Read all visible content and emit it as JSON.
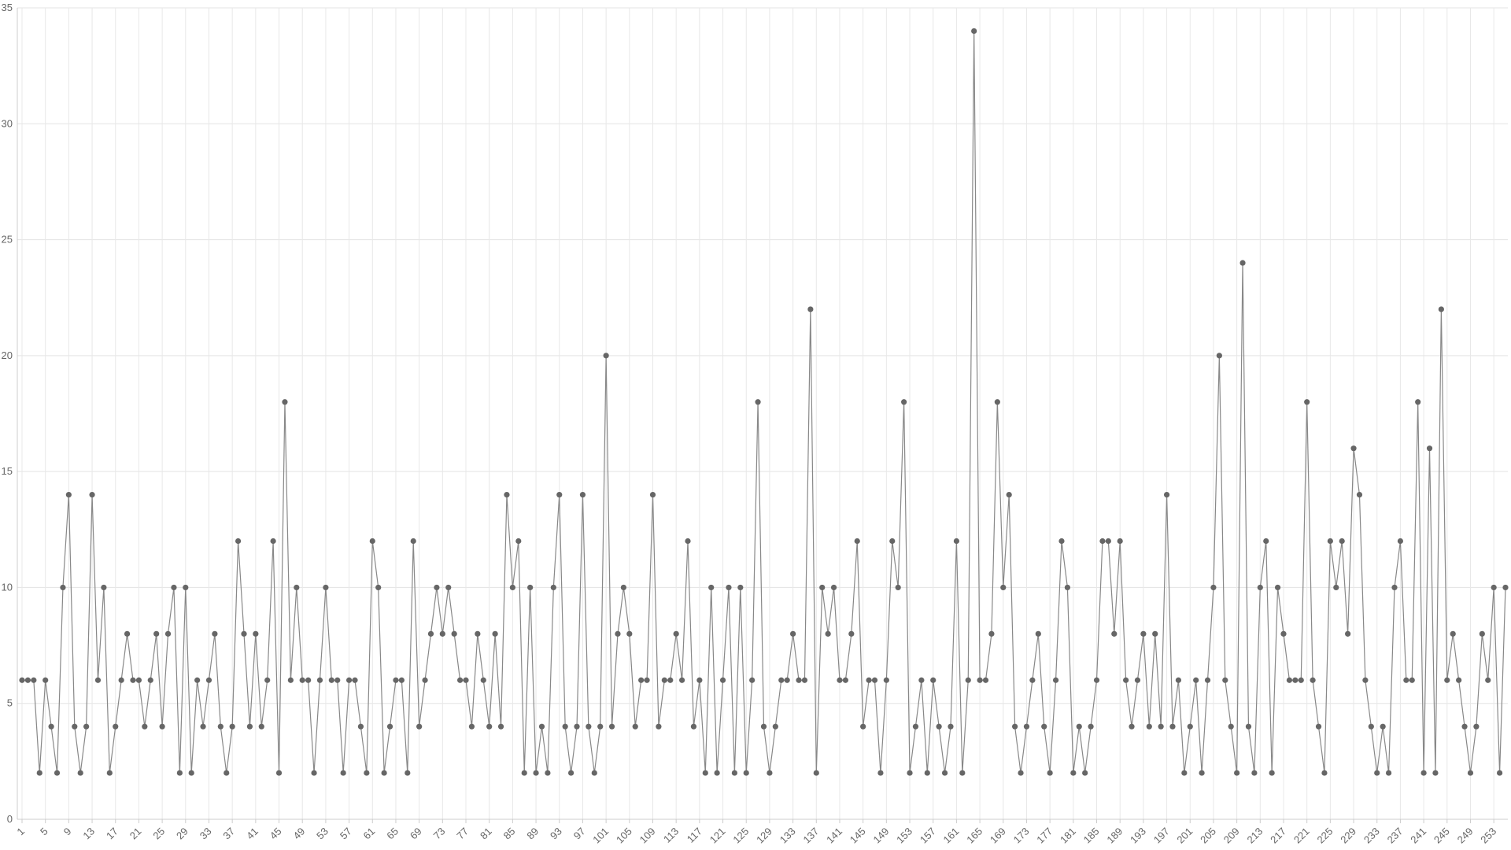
{
  "chart_data": {
    "type": "line",
    "categories": [
      1,
      null,
      null,
      null,
      5,
      null,
      null,
      null,
      9,
      null,
      null,
      null,
      13,
      null,
      null,
      null,
      17,
      null,
      null,
      null,
      21,
      null,
      null,
      null,
      25,
      null,
      null,
      null,
      29,
      null,
      null,
      null,
      33,
      null,
      null,
      null,
      37,
      null,
      null,
      null,
      41,
      null,
      null,
      null,
      45,
      null,
      null,
      null,
      49,
      null,
      null,
      null,
      53,
      null,
      null,
      null,
      57,
      null,
      null,
      null,
      61,
      null,
      null,
      null,
      65,
      null,
      null,
      null,
      69,
      null,
      null,
      null,
      73,
      null,
      null,
      null,
      77,
      null,
      null,
      null,
      81,
      null,
      null,
      null,
      85,
      null,
      null,
      null,
      89,
      null,
      null,
      null,
      93,
      null,
      null,
      null,
      97,
      null,
      null,
      null,
      101,
      null,
      null,
      null,
      105,
      null,
      null,
      null,
      109,
      null,
      null,
      null,
      113,
      null,
      null,
      null,
      117,
      null,
      null,
      null,
      121,
      null,
      null,
      null,
      125,
      null,
      null,
      null,
      129,
      null,
      null,
      null,
      133,
      null,
      null,
      null,
      137,
      null,
      null,
      null,
      141,
      null,
      null,
      null,
      145,
      null,
      null,
      null,
      149,
      null,
      null,
      null,
      153,
      null,
      null,
      null,
      157,
      null,
      null,
      null,
      161,
      null,
      null,
      null,
      165,
      null,
      null,
      null,
      169,
      null,
      null,
      null,
      173,
      null,
      null,
      null,
      177,
      null,
      null,
      null,
      181,
      null,
      null,
      null,
      185,
      null,
      null,
      null,
      189,
      null,
      null,
      null,
      193,
      null,
      null,
      null,
      197,
      null,
      null,
      null,
      201,
      null,
      null,
      null,
      205,
      null,
      null,
      null,
      209,
      null,
      null,
      null,
      213,
      null,
      null,
      null,
      217,
      null,
      null,
      null,
      221,
      null,
      null,
      null,
      225,
      null,
      null,
      null,
      229,
      null,
      null,
      null,
      233,
      null,
      null,
      null,
      237,
      null,
      null,
      null,
      241,
      null,
      null,
      null,
      245,
      null,
      null,
      null,
      249,
      null,
      null,
      null,
      253,
      null,
      null
    ],
    "values": [
      6,
      6,
      6,
      2,
      6,
      4,
      2,
      10,
      14,
      4,
      2,
      4,
      14,
      6,
      10,
      2,
      4,
      6,
      8,
      6,
      6,
      4,
      6,
      8,
      4,
      8,
      10,
      2,
      10,
      2,
      6,
      4,
      6,
      8,
      4,
      2,
      4,
      12,
      8,
      4,
      8,
      4,
      6,
      12,
      2,
      18,
      6,
      10,
      6,
      6,
      2,
      6,
      10,
      6,
      6,
      2,
      6,
      6,
      4,
      2,
      12,
      10,
      2,
      4,
      6,
      6,
      2,
      12,
      4,
      6,
      8,
      10,
      8,
      10,
      8,
      6,
      6,
      4,
      8,
      6,
      4,
      8,
      4,
      14,
      10,
      12,
      2,
      10,
      2,
      4,
      2,
      10,
      14,
      4,
      2,
      4,
      14,
      4,
      2,
      4,
      20,
      4,
      8,
      10,
      8,
      4,
      6,
      6,
      14,
      4,
      6,
      6,
      8,
      6,
      12,
      4,
      6,
      2,
      10,
      2,
      6,
      10,
      2,
      10,
      2,
      6,
      18,
      4,
      2,
      4,
      6,
      6,
      8,
      6,
      6,
      22,
      2,
      10,
      8,
      10,
      6,
      6,
      8,
      12,
      4,
      6,
      6,
      2,
      6,
      12,
      10,
      18,
      2,
      4,
      6,
      2,
      6,
      4,
      2,
      4,
      12,
      2,
      6,
      34,
      6,
      6,
      8,
      18,
      10,
      14,
      4,
      2,
      4,
      6,
      8,
      4,
      2,
      6,
      12,
      10,
      2,
      4,
      2,
      4,
      6,
      12,
      12,
      8,
      12,
      6,
      4,
      6,
      8,
      4,
      8,
      4,
      14,
      4,
      6,
      2,
      4,
      6,
      2,
      6,
      10,
      20,
      6,
      4,
      2,
      24,
      4,
      2,
      10,
      12,
      2,
      10,
      8,
      6,
      6,
      6,
      18,
      6,
      4,
      2,
      12,
      10,
      12,
      8,
      16,
      14,
      6,
      4,
      2,
      4,
      2,
      10,
      12,
      6,
      6,
      18,
      2,
      16,
      2,
      22,
      6,
      8,
      6,
      4,
      2,
      4,
      8,
      6,
      10,
      2,
      10
    ],
    "color": "#888888",
    "marker_color": "#666666",
    "ylim": [
      0,
      35
    ],
    "yticks": [
      0,
      5,
      10,
      15,
      20,
      25,
      30,
      35
    ],
    "grid": true
  }
}
